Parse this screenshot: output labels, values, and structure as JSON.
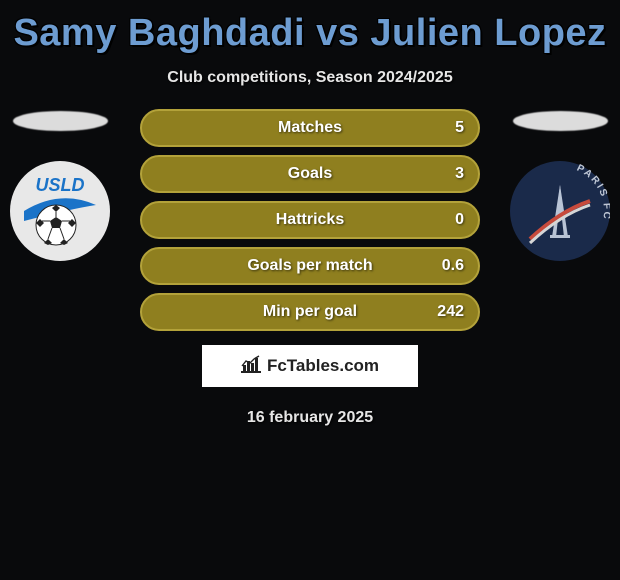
{
  "title": "Samy Baghdadi vs Julien Lopez",
  "subtitle": "Club competitions, Season 2024/2025",
  "date": "16 february 2025",
  "brand": "FcTables.com",
  "leftClub": {
    "name": "USLD",
    "bg": "#e8e8e8",
    "accent": "#1a73c8",
    "text": "#1a73c8"
  },
  "rightClub": {
    "name": "PARIS FC",
    "bg": "#1a2a4a",
    "accent": "#223a63",
    "text": "#c0c8d6"
  },
  "rows": [
    {
      "label": "Matches",
      "left": "",
      "right": "5",
      "fill": "#8f7f1f",
      "border": "#b3a23a"
    },
    {
      "label": "Goals",
      "left": "",
      "right": "3",
      "fill": "#8f7f1f",
      "border": "#b3a23a"
    },
    {
      "label": "Hattricks",
      "left": "",
      "right": "0",
      "fill": "#8f7f1f",
      "border": "#b3a23a"
    },
    {
      "label": "Goals per match",
      "left": "",
      "right": "0.6",
      "fill": "#8f7f1f",
      "border": "#b3a23a"
    },
    {
      "label": "Min per goal",
      "left": "",
      "right": "242",
      "fill": "#8f7f1f",
      "border": "#b3a23a"
    }
  ]
}
